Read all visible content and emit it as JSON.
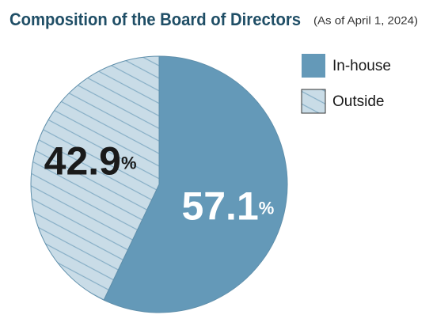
{
  "chart_data": {
    "type": "pie",
    "title": "Composition of the Board of Directors",
    "subtitle": "(As of April 1, 2024)",
    "categories": [
      "In-house",
      "Outside"
    ],
    "values": [
      57.1,
      42.9
    ],
    "unit": "%",
    "colors": [
      "#6499b8",
      "#c9dce7"
    ],
    "hatch": [
      false,
      true
    ],
    "label_colors": [
      "#ffffff",
      "#1a1a1a"
    ]
  }
}
